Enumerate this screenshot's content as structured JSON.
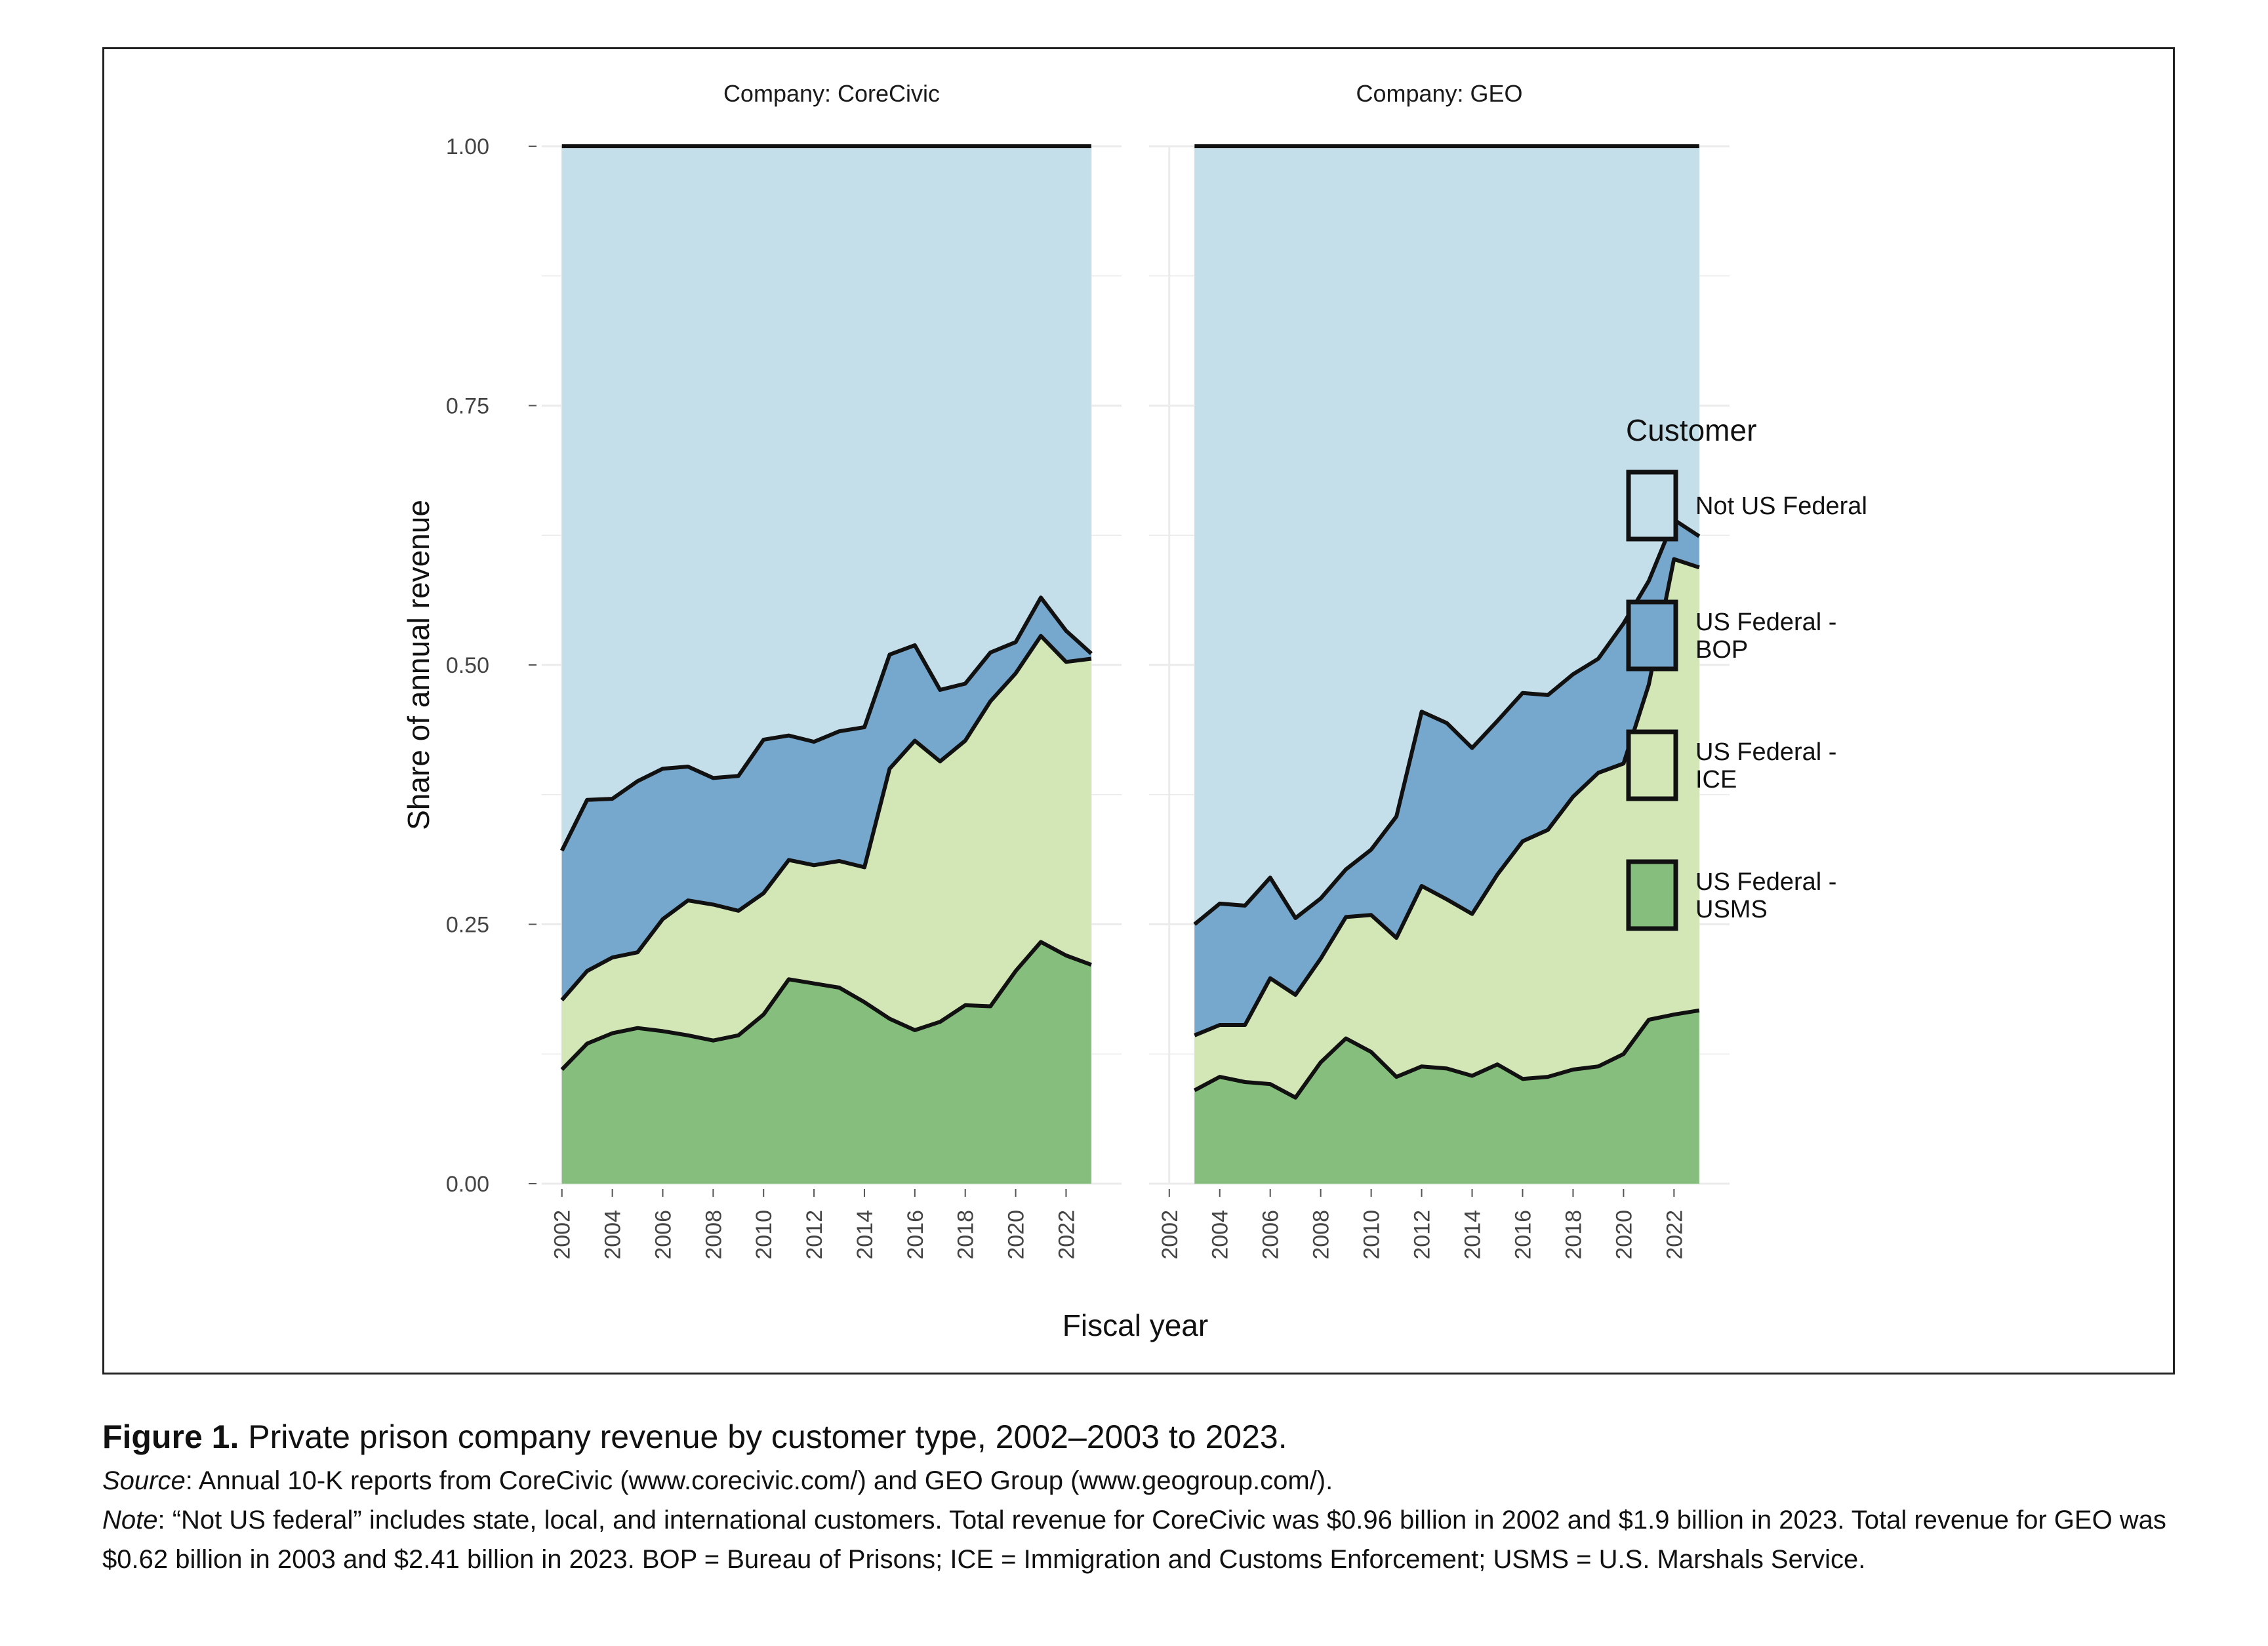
{
  "chart_data": {
    "type": "area",
    "stacked": true,
    "facet_label_prefix": "Company: ",
    "facets": [
      {
        "name": "CoreCivic",
        "x": [
          2002,
          2003,
          2004,
          2005,
          2006,
          2007,
          2008,
          2009,
          2010,
          2011,
          2012,
          2013,
          2014,
          2015,
          2016,
          2017,
          2018,
          2019,
          2020,
          2021,
          2022,
          2023
        ],
        "series": [
          {
            "name": "US Federal - USMS",
            "values": [
              0.11,
              0.135,
              0.145,
              0.15,
              0.147,
              0.143,
              0.138,
              0.143,
              0.163,
              0.197,
              0.193,
              0.189,
              0.175,
              0.159,
              0.148,
              0.156,
              0.172,
              0.171,
              0.205,
              0.233,
              0.22,
              0.211
            ]
          },
          {
            "name": "US Federal - ICE",
            "values": [
              0.067,
              0.07,
              0.073,
              0.073,
              0.108,
              0.13,
              0.131,
              0.12,
              0.117,
              0.115,
              0.114,
              0.122,
              0.13,
              0.241,
              0.279,
              0.251,
              0.255,
              0.294,
              0.287,
              0.295,
              0.283,
              0.295
            ]
          },
          {
            "name": "US Federal - BOP",
            "values": [
              0.144,
              0.165,
              0.153,
              0.165,
              0.145,
              0.129,
              0.122,
              0.13,
              0.148,
              0.12,
              0.119,
              0.125,
              0.135,
              0.11,
              0.092,
              0.069,
              0.055,
              0.047,
              0.03,
              0.037,
              0.03,
              0.005
            ]
          },
          {
            "name": "Not US Federal",
            "values": [
              0.679,
              0.63,
              0.629,
              0.612,
              0.6,
              0.598,
              0.609,
              0.607,
              0.572,
              0.568,
              0.574,
              0.564,
              0.56,
              0.49,
              0.481,
              0.524,
              0.518,
              0.488,
              0.478,
              0.435,
              0.467,
              0.489
            ]
          }
        ]
      },
      {
        "name": "GEO",
        "x": [
          2003,
          2004,
          2005,
          2006,
          2007,
          2008,
          2009,
          2010,
          2011,
          2012,
          2013,
          2014,
          2015,
          2016,
          2017,
          2018,
          2019,
          2020,
          2021,
          2022,
          2023
        ],
        "series": [
          {
            "name": "US Federal - USMS",
            "values": [
              0.09,
              0.103,
              0.098,
              0.096,
              0.083,
              0.117,
              0.14,
              0.127,
              0.103,
              0.113,
              0.111,
              0.104,
              0.115,
              0.101,
              0.103,
              0.11,
              0.113,
              0.125,
              0.158,
              0.163,
              0.167
            ]
          },
          {
            "name": "US Federal - ICE",
            "values": [
              0.053,
              0.05,
              0.055,
              0.102,
              0.099,
              0.1,
              0.117,
              0.132,
              0.134,
              0.174,
              0.163,
              0.156,
              0.183,
              0.229,
              0.238,
              0.263,
              0.283,
              0.28,
              0.323,
              0.439,
              0.427
            ]
          },
          {
            "name": "US Federal - BOP",
            "values": [
              0.107,
              0.117,
              0.115,
              0.097,
              0.074,
              0.058,
              0.046,
              0.063,
              0.117,
              0.168,
              0.17,
              0.16,
              0.148,
              0.143,
              0.13,
              0.118,
              0.11,
              0.135,
              0.1,
              0.038,
              0.03
            ]
          },
          {
            "name": "Not US Federal",
            "values": [
              0.75,
              0.73,
              0.732,
              0.705,
              0.744,
              0.725,
              0.697,
              0.678,
              0.646,
              0.545,
              0.556,
              0.58,
              0.554,
              0.527,
              0.529,
              0.509,
              0.494,
              0.46,
              0.419,
              0.36,
              0.376
            ]
          }
        ]
      }
    ],
    "xlim": [
      2001.2,
      2024.2
    ],
    "ylim": [
      0,
      1.0
    ],
    "yticks": [
      0.0,
      0.25,
      0.5,
      0.75,
      1.0
    ],
    "ytick_labels": [
      "0.00",
      "0.25",
      "0.50",
      "0.75",
      "1.00"
    ],
    "xticks": [
      2002,
      2004,
      2006,
      2008,
      2010,
      2012,
      2014,
      2016,
      2018,
      2020,
      2022
    ],
    "xlabel": "Fiscal year",
    "ylabel": "Share of annual revenue",
    "grid": true,
    "legend": {
      "title": "Customer",
      "position": "right",
      "entries": [
        {
          "lines": [
            "Not US Federal"
          ],
          "color": "#c5dfea"
        },
        {
          "lines": [
            "US Federal -",
            "BOP"
          ],
          "color": "#76a7cc"
        },
        {
          "lines": [
            "US Federal -",
            "ICE"
          ],
          "color": "#d3e6b6"
        },
        {
          "lines": [
            "US Federal -",
            "USMS"
          ],
          "color": "#86be7e"
        }
      ]
    },
    "colors": {
      "Not US Federal": "#c5dfea",
      "US Federal - BOP": "#76a7cc",
      "US Federal - ICE": "#d3e6b6",
      "US Federal - USMS": "#86be7e",
      "outline": "#111111",
      "panel_bg": "#ffffff",
      "grid": "#ebebeb"
    }
  },
  "caption": {
    "figure_label": "Figure 1.",
    "title": "Private prison company revenue by customer type, 2002–2003 to 2023.",
    "source_label": "Source",
    "source_text": ": Annual 10-K reports from CoreCivic (www.corecivic.com/) and GEO Group (www.geogroup.com/).",
    "note_label": "Note",
    "note_text": ": “Not US federal” includes state, local, and international customers. Total revenue for CoreCivic was $0.96 billion in 2002 and $1.9 billion in 2023. Total revenue for GEO was $0.62 billion in 2003 and $2.41 billion in 2023. BOP = Bureau of Prisons; ICE = Immigration and Customs Enforcement; USMS = U.S. Marshals Service."
  }
}
